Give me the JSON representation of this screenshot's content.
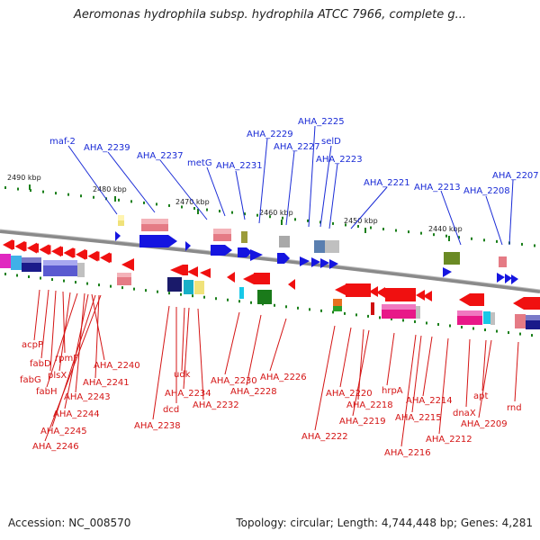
{
  "title": "Aeromonas hydrophila subsp. hydrophila ATCC 7966, complete g...",
  "footer": {
    "accession": "Accession: NC_008570",
    "topology": "Topology: circular; Length: 4,744,448 bp; Genes: 4,281"
  },
  "colors": {
    "top_label": "#1a2bd6",
    "bottom_label": "#d41414",
    "backbone": "#888888",
    "tick": "#1a7f1a"
  },
  "ticks": [
    "2490 kbp",
    "2480 kbp",
    "2470 kbp",
    "2460 kbp",
    "2450 kbp",
    "2440 kbp"
  ],
  "top_genes": [
    "maf-2",
    "AHA_2239",
    "AHA_2237",
    "metG",
    "AHA_2231",
    "AHA_2229",
    "AHA_2227",
    "AHA_2225",
    "selD",
    "AHA_2223",
    "AHA_2221",
    "AHA_2213",
    "AHA_2208",
    "AHA_2207"
  ],
  "bottom_genes": [
    "acpP",
    "fabD",
    "rpmF",
    "fabG",
    "plsX",
    "fabH",
    "AHA_2240",
    "AHA_2241",
    "AHA_2243",
    "AHA_2244",
    "AHA_2245",
    "AHA_2246",
    "AHA_2238",
    "udk",
    "dcd",
    "AHA_2234",
    "AHA_2232",
    "AHA_2230",
    "AHA_2228",
    "AHA_2226",
    "AHA_2222",
    "AHA_2220",
    "AHA_2218",
    "AHA_2219",
    "hrpA",
    "AHA_2216",
    "AHA_2215",
    "AHA_2214",
    "AHA_2212",
    "dnaX",
    "apt",
    "AHA_2209",
    "rnd"
  ]
}
